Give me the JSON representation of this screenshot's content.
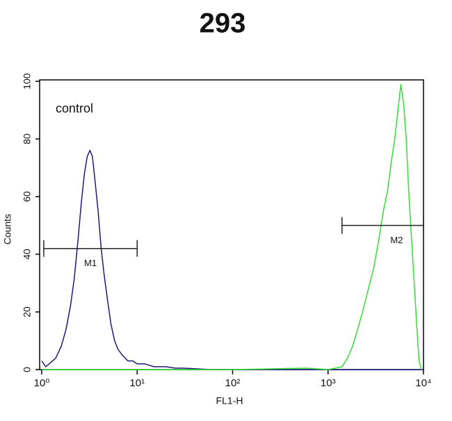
{
  "chart_data": {
    "type": "histogram-overlay",
    "title": "293",
    "x_label": "FL1-H",
    "y_label": "Counts",
    "xscale": "log",
    "xlim": [
      1,
      10000
    ],
    "xticks": [
      {
        "value": 1,
        "label": "10⁰"
      },
      {
        "value": 10,
        "label": "10¹"
      },
      {
        "value": 100,
        "label": "10²"
      },
      {
        "value": 1000,
        "label": "10³"
      },
      {
        "value": 10000,
        "label": "10⁴"
      }
    ],
    "ylim": [
      0,
      100
    ],
    "yticks": [
      0,
      20,
      40,
      60,
      80,
      100
    ],
    "series": [
      {
        "name": "control",
        "color": "#1a1a7a",
        "x": [
          1,
          1.1,
          1.2,
          1.4,
          1.6,
          1.8,
          2.0,
          2.2,
          2.4,
          2.6,
          2.8,
          3.0,
          3.2,
          3.4,
          3.6,
          3.9,
          4.2,
          4.5,
          4.9,
          5.3,
          5.8,
          6.3,
          7,
          8,
          9,
          10,
          12,
          15,
          20,
          25,
          30,
          40,
          60,
          100,
          300,
          1000,
          3000,
          10000
        ],
        "values": [
          3,
          1,
          2,
          4,
          8,
          14,
          22,
          32,
          45,
          58,
          68,
          74,
          76,
          74,
          66,
          55,
          42,
          33,
          24,
          16,
          10,
          7,
          5,
          3,
          3,
          2,
          2,
          1,
          1,
          0.5,
          0.5,
          0.3,
          0,
          0,
          0,
          0,
          0,
          0
        ]
      },
      {
        "color": "#33dd33",
        "x": [
          1,
          100,
          600,
          1000,
          1400,
          1600,
          1800,
          2000,
          2300,
          2600,
          3000,
          3400,
          3800,
          4200,
          4600,
          5000,
          5400,
          5800,
          6200,
          6600,
          7000,
          7500,
          8000,
          8500,
          9000,
          9500
        ],
        "values": [
          0,
          0,
          0.5,
          0,
          1,
          4,
          8,
          13,
          20,
          27,
          35,
          45,
          55,
          62,
          72,
          80,
          90,
          99,
          92,
          80,
          62,
          45,
          30,
          15,
          3,
          0
        ]
      }
    ],
    "markers": [
      {
        "label": "M1",
        "x": [
          1.05,
          10
        ],
        "y": 42
      },
      {
        "label": "M2",
        "x": [
          1400,
          10000
        ],
        "y": 50
      }
    ]
  }
}
